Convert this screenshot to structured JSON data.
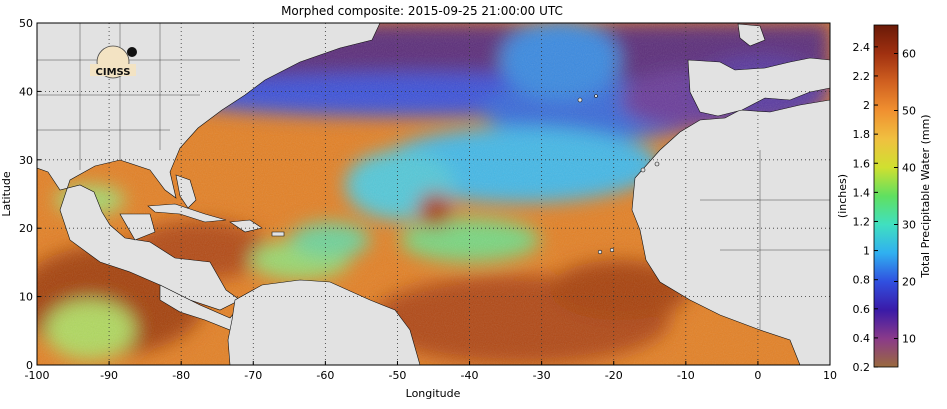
{
  "title": "Morphed composite: 2015-09-25 21:00:00 UTC",
  "map": {
    "xlabel": "Longitude",
    "ylabel": "Latitude",
    "lon_range": [
      -100,
      10
    ],
    "lat_range": [
      0,
      50
    ],
    "lon_ticks": [
      "-100",
      "-90",
      "-80",
      "-70",
      "-60",
      "-50",
      "-40",
      "-30",
      "-20",
      "-10",
      "0",
      "10"
    ],
    "lat_ticks": [
      "0",
      "10",
      "20",
      "30",
      "40",
      "50"
    ],
    "grid": "dotted",
    "logo_text": "CIMSS",
    "colors": {
      "land": "#e2e2e2",
      "ocean_moist": "#e07a1e",
      "ocean_very_moist": "#a8430f",
      "ocean_dry": "#5a2a78",
      "ocean_mid": "#3fbbe0"
    }
  },
  "colorbar": {
    "mm_label": "Total Precipitable Water (mm)",
    "in_label": "(inches)",
    "mm_ticks": [
      "10",
      "20",
      "30",
      "40",
      "50",
      "60"
    ],
    "in_ticks": [
      "0.2",
      "0.4",
      "0.6",
      "0.8",
      "1",
      "1.2",
      "1.4",
      "1.6",
      "1.8",
      "2",
      "2.2",
      "2.4"
    ],
    "colors": [
      "#9a6a3e",
      "#8a3a8a",
      "#3a1aa8",
      "#3050e0",
      "#30b0f0",
      "#40e0c0",
      "#60e060",
      "#d0e030",
      "#f0c040",
      "#f09030",
      "#d06020",
      "#a03010",
      "#6a1a08"
    ]
  }
}
